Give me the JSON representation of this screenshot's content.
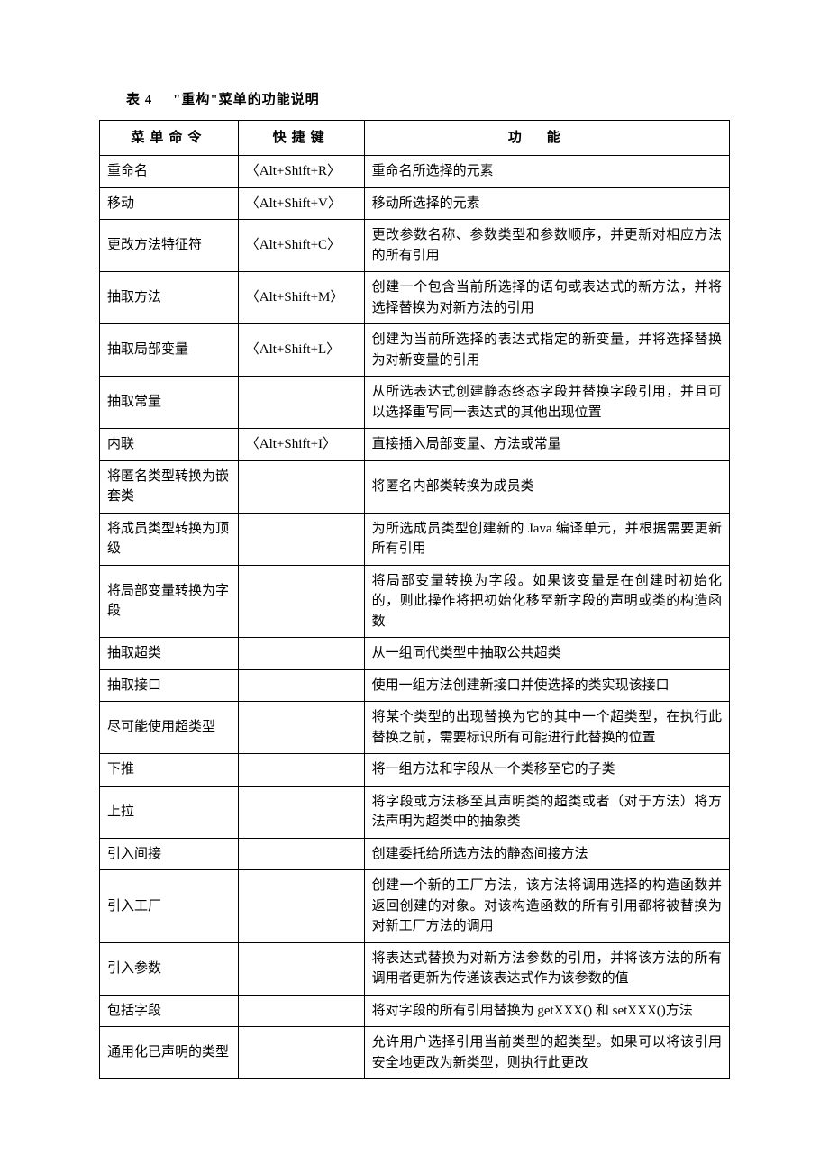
{
  "caption": {
    "label": "表 4",
    "title": "\"重构\"菜单的功能说明"
  },
  "columns": [
    "菜单命令",
    "快捷键",
    "功能"
  ],
  "rows": [
    {
      "cmd": "重命名",
      "key": "〈Alt+Shift+R〉",
      "fn": "重命名所选择的元素"
    },
    {
      "cmd": "移动",
      "key": "〈Alt+Shift+V〉",
      "fn": "移动所选择的元素"
    },
    {
      "cmd": "更改方法特征符",
      "key": "〈Alt+Shift+C〉",
      "fn": "更改参数名称、参数类型和参数顺序，并更新对相应方法的所有引用"
    },
    {
      "cmd": "抽取方法",
      "key": "〈Alt+Shift+M〉",
      "fn": "创建一个包含当前所选择的语句或表达式的新方法，并将选择替换为对新方法的引用"
    },
    {
      "cmd": "抽取局部变量",
      "key": "〈Alt+Shift+L〉",
      "fn": "创建为当前所选择的表达式指定的新变量，并将选择替换为对新变量的引用"
    },
    {
      "cmd": "抽取常量",
      "key": "",
      "fn": "从所选表达式创建静态终态字段并替换字段引用，并且可以选择重写同一表达式的其他出现位置"
    },
    {
      "cmd": "内联",
      "key": "〈Alt+Shift+I〉",
      "fn": "直接插入局部变量、方法或常量"
    },
    {
      "cmd": "将匿名类型转换为嵌套类",
      "key": "",
      "fn": "将匿名内部类转换为成员类"
    },
    {
      "cmd": "将成员类型转换为顶级",
      "key": "",
      "fn": "为所选成员类型创建新的 Java 编译单元，并根据需要更新所有引用"
    },
    {
      "cmd": "将局部变量转换为字段",
      "key": "",
      "fn": "将局部变量转换为字段。如果该变量是在创建时初始化的，则此操作将把初始化移至新字段的声明或类的构造函数"
    },
    {
      "cmd": "抽取超类",
      "key": "",
      "fn": "从一组同代类型中抽取公共超类"
    },
    {
      "cmd": "抽取接口",
      "key": "",
      "fn": "使用一组方法创建新接口并使选择的类实现该接口"
    },
    {
      "cmd": "尽可能使用超类型",
      "key": "",
      "fn": "将某个类型的出现替换为它的其中一个超类型，在执行此替换之前，需要标识所有可能进行此替换的位置"
    },
    {
      "cmd": "下推",
      "key": "",
      "fn": "将一组方法和字段从一个类移至它的子类"
    },
    {
      "cmd": "上拉",
      "key": "",
      "fn": "将字段或方法移至其声明类的超类或者（对于方法）将方法声明为超类中的抽象类"
    },
    {
      "cmd": "引入间接",
      "key": "",
      "fn": "创建委托给所选方法的静态间接方法"
    },
    {
      "cmd": "引入工厂",
      "key": "",
      "fn": "创建一个新的工厂方法，该方法将调用选择的构造函数并返回创建的对象。对该构造函数的所有引用都将被替换为对新工厂方法的调用"
    },
    {
      "cmd": "引入参数",
      "key": "",
      "fn": "将表达式替换为对新方法参数的引用，并将该方法的所有调用者更新为传递该表达式作为该参数的值"
    },
    {
      "cmd": "包括字段",
      "key": "",
      "fn": "将对字段的所有引用替换为 getXXX() 和 setXXX()方法"
    },
    {
      "cmd": "通用化已声明的类型",
      "key": "",
      "fn": "允许用户选择引用当前类型的超类型。如果可以将该引用安全地更改为新类型，则执行此更改"
    }
  ]
}
